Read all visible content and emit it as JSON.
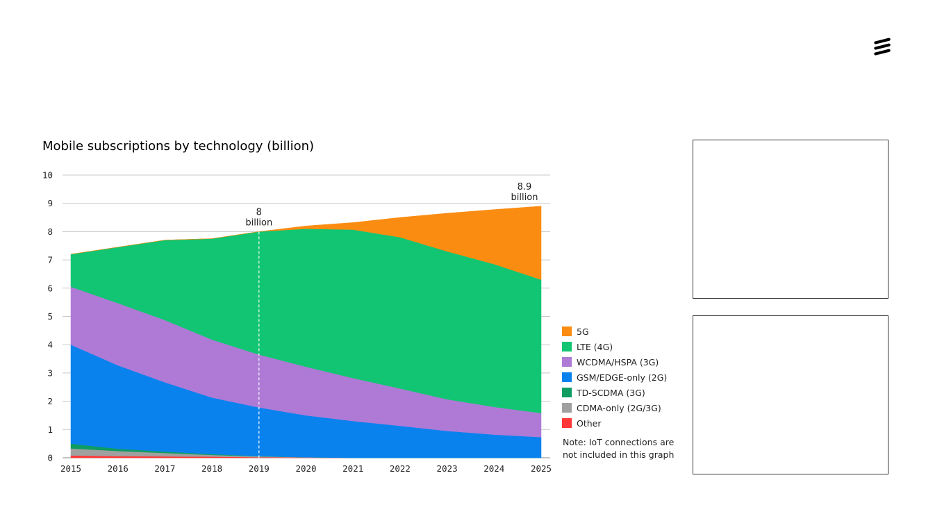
{
  "colors": {
    "5G": "#FA8C12",
    "LTE (4G)": "#12C572",
    "WCDMA/HSPA (3G)": "#AE7AD6",
    "GSM/EDGE-only (2G)": "#0A82EE",
    "TD-SCDMA (3G)": "#0E9C62",
    "CDMA-only (2G/3G)": "#A0A0A0",
    "Other": "#FF3737"
  },
  "logo": {
    "icon": "ericsson-logo-icon"
  },
  "chart_data": {
    "type": "area",
    "stacked": true,
    "title": "Mobile subscriptions by technology (billion)",
    "xlabel": "",
    "ylabel": "",
    "x": [
      "2015",
      "2016",
      "2017",
      "2018",
      "2019",
      "2020",
      "2021",
      "2022",
      "2023",
      "2024",
      "2025"
    ],
    "ylim": [
      0,
      10
    ],
    "yticks": [
      "0",
      "1",
      "2",
      "3",
      "4",
      "5",
      "6",
      "7",
      "8",
      "9",
      "10"
    ],
    "grid": true,
    "legend_position": "right",
    "series": [
      {
        "name": "Other",
        "values": [
          0.08,
          0.06,
          0.05,
          0.04,
          0.02,
          0.01,
          0.0,
          0.0,
          0.0,
          0.0,
          0.0
        ]
      },
      {
        "name": "CDMA-only (2G/3G)",
        "values": [
          0.25,
          0.18,
          0.12,
          0.06,
          0.03,
          0.01,
          0.0,
          0.0,
          0.0,
          0.0,
          0.0
        ]
      },
      {
        "name": "TD-SCDMA (3G)",
        "values": [
          0.17,
          0.08,
          0.05,
          0.03,
          0.01,
          0.0,
          0.0,
          0.0,
          0.0,
          0.0,
          0.0
        ]
      },
      {
        "name": "GSM/EDGE-only (2G)",
        "values": [
          3.5,
          2.95,
          2.45,
          2.0,
          1.72,
          1.48,
          1.3,
          1.13,
          0.95,
          0.82,
          0.73
        ]
      },
      {
        "name": "WCDMA/HSPA (3G)",
        "values": [
          2.05,
          2.2,
          2.2,
          2.05,
          1.87,
          1.72,
          1.52,
          1.32,
          1.12,
          0.98,
          0.85
        ]
      },
      {
        "name": "LTE (4G)",
        "values": [
          1.15,
          1.98,
          2.83,
          3.57,
          4.35,
          4.88,
          5.25,
          5.35,
          5.23,
          5.05,
          4.72
        ]
      },
      {
        "name": "5G",
        "values": [
          0.0,
          0.0,
          0.0,
          0.0,
          0.0,
          0.1,
          0.25,
          0.7,
          1.35,
          1.93,
          2.6
        ]
      }
    ],
    "annotations": [
      {
        "x": "2019",
        "value": "8",
        "text": "billion"
      },
      {
        "x": "2025",
        "value": "8.9",
        "text": "billion"
      }
    ]
  },
  "legend": {
    "items": [
      {
        "label": "5G",
        "series": "5G"
      },
      {
        "label": "LTE (4G)",
        "series": "LTE (4G)"
      },
      {
        "label": "WCDMA/HSPA (3G)",
        "series": "WCDMA/HSPA (3G)"
      },
      {
        "label": "GSM/EDGE-only (2G)",
        "series": "GSM/EDGE-only (2G)"
      },
      {
        "label": "TD-SCDMA (3G)",
        "series": "TD-SCDMA (3G)"
      },
      {
        "label": "CDMA-only (2G/3G)",
        "series": "CDMA-only (2G/3G)"
      },
      {
        "label": "Other",
        "series": "Other"
      }
    ]
  },
  "note": "Note: IoT connections are not included in this graph"
}
